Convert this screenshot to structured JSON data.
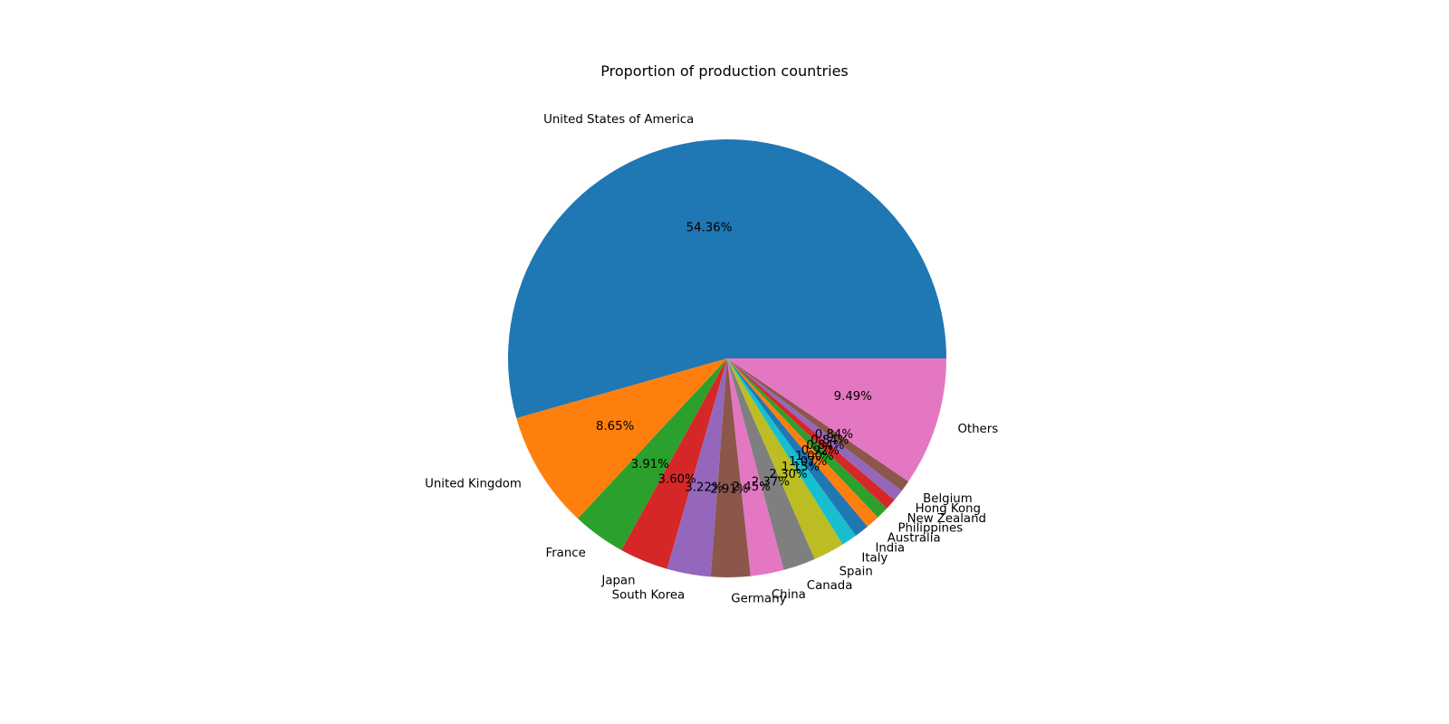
{
  "chart_data": {
    "type": "pie",
    "title": "Proportion of production countries",
    "slices": [
      {
        "label": "United States of America",
        "value": 54.36,
        "pct_label": "54.36%",
        "color": "#1f77b4"
      },
      {
        "label": "United Kingdom",
        "value": 8.65,
        "pct_label": "8.65%",
        "color": "#ff7f0e"
      },
      {
        "label": "France",
        "value": 3.91,
        "pct_label": "3.91%",
        "color": "#2ca02c"
      },
      {
        "label": "Japan",
        "value": 3.6,
        "pct_label": "3.60%",
        "color": "#d62728"
      },
      {
        "label": "South Korea",
        "value": 3.22,
        "pct_label": "3.22%",
        "color": "#9467bd"
      },
      {
        "label": "Germany",
        "value": 2.91,
        "pct_label": "2.91%",
        "color": "#8c564b"
      },
      {
        "label": "China",
        "value": 2.45,
        "pct_label": "2.45%",
        "color": "#e377c2"
      },
      {
        "label": "Canada",
        "value": 2.37,
        "pct_label": "2.37%",
        "color": "#7f7f7f"
      },
      {
        "label": "Spain",
        "value": 2.3,
        "pct_label": "2.30%",
        "color": "#bcbd22"
      },
      {
        "label": "Italy",
        "value": 1.15,
        "pct_label": "1.15%",
        "color": "#17becf"
      },
      {
        "label": "India",
        "value": 1.07,
        "pct_label": "1.07%",
        "color": "#1f77b4"
      },
      {
        "label": "Australia",
        "value": 1.0,
        "pct_label": "1.00%",
        "color": "#ff7f0e"
      },
      {
        "label": "Philippines",
        "value": 0.92,
        "pct_label": "0.92%",
        "color": "#2ca02c"
      },
      {
        "label": "New Zealand",
        "value": 0.84,
        "pct_label": "0.84%",
        "color": "#d62728"
      },
      {
        "label": "Hong Kong",
        "value": 0.84,
        "pct_label": "0.84%",
        "color": "#9467bd"
      },
      {
        "label": "Belgium",
        "value": 0.84,
        "pct_label": "0.84%",
        "color": "#8c564b"
      },
      {
        "label": "Others",
        "value": 9.49,
        "pct_label": "9.49%",
        "color": "#e377c2"
      }
    ],
    "start_angle_deg": 0,
    "direction": "counterclockwise",
    "legend": "none"
  }
}
